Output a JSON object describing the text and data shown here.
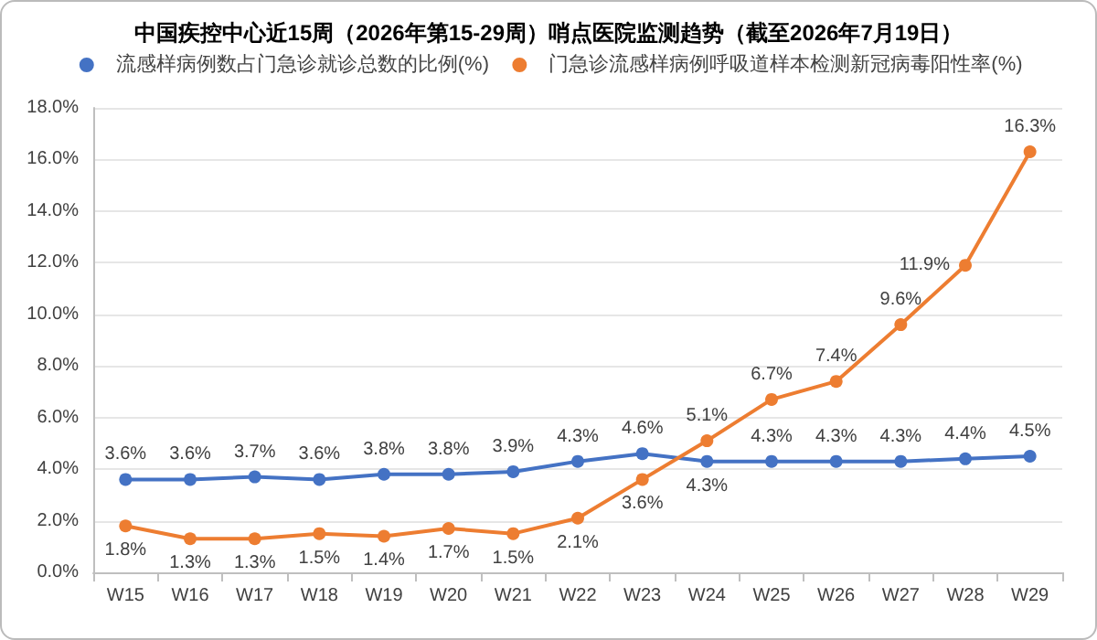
{
  "chart_data": {
    "type": "line",
    "title": "中国疾控中心近15周（2026年第15-29周）哨点医院监测趋势（截至2026年7月19日）",
    "categories": [
      "W15",
      "W16",
      "W17",
      "W18",
      "W19",
      "W20",
      "W21",
      "W22",
      "W23",
      "W24",
      "W25",
      "W26",
      "W27",
      "W28",
      "W29"
    ],
    "series": [
      {
        "name": "流感样病例数占门急诊就诊总数的比例(%)",
        "color": "#4472c4",
        "values": [
          3.6,
          3.6,
          3.7,
          3.6,
          3.8,
          3.8,
          3.9,
          4.3,
          4.6,
          4.3,
          4.3,
          4.3,
          4.3,
          4.4,
          4.5
        ],
        "value_labels": [
          "3.6%",
          "3.6%",
          "3.7%",
          "3.6%",
          "3.8%",
          "3.8%",
          "3.9%",
          "4.3%",
          "4.6%",
          "4.3%",
          "4.3%",
          "4.3%",
          "4.3%",
          "4.4%",
          "4.5%"
        ]
      },
      {
        "name": "门急诊流感样病例呼吸道样本检测新冠病毒阳性率(%)",
        "color": "#ed7d31",
        "values": [
          1.8,
          1.3,
          1.3,
          1.5,
          1.4,
          1.7,
          1.5,
          2.1,
          3.6,
          5.1,
          6.7,
          7.4,
          9.6,
          11.9,
          16.3
        ],
        "value_labels": [
          "1.8%",
          "1.3%",
          "1.3%",
          "1.5%",
          "1.4%",
          "1.7%",
          "1.5%",
          "2.1%",
          "3.6%",
          "5.1%",
          "6.7%",
          "7.4%",
          "9.6%",
          "11.9%",
          "16.3%"
        ]
      }
    ],
    "ylim": [
      0,
      18
    ],
    "yticks": [
      {
        "value": 0,
        "label": "0.0%"
      },
      {
        "value": 2,
        "label": "2.0%"
      },
      {
        "value": 4,
        "label": "4.0%"
      },
      {
        "value": 6,
        "label": "6.0%"
      },
      {
        "value": 8,
        "label": "8.0%"
      },
      {
        "value": 10,
        "label": "10.0%"
      },
      {
        "value": 12,
        "label": "12.0%"
      },
      {
        "value": 14,
        "label": "14.0%"
      },
      {
        "value": 16,
        "label": "16.0%"
      },
      {
        "value": 18,
        "label": "18.0%"
      }
    ],
    "grid": "y",
    "legend": "top",
    "marker": "circle",
    "line_style": "solid"
  }
}
